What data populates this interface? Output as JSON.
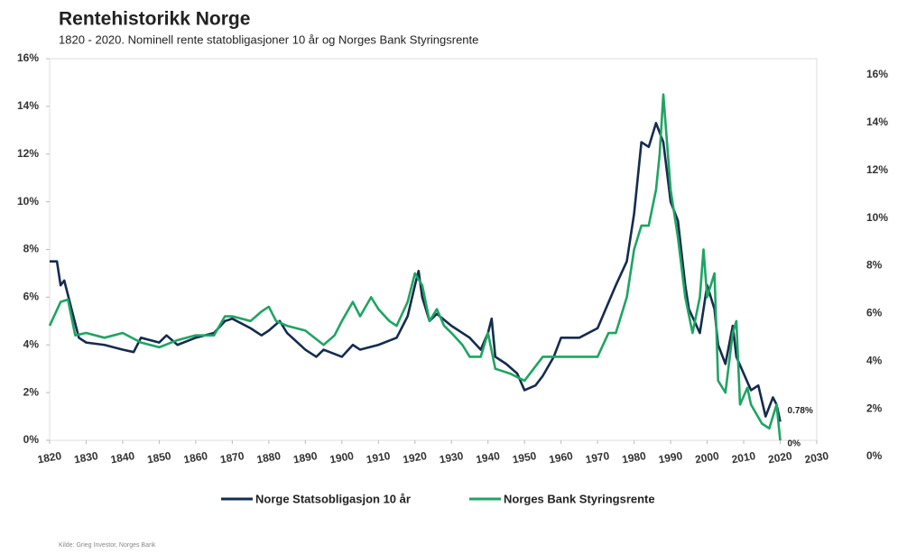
{
  "chart_data": {
    "type": "line",
    "title": "Rentehistorikk Norge",
    "subtitle": "1820 - 2020. Nominell rente statobligasjoner 10 år og Norges Bank Styringsrente",
    "source": "Kilde: Grieg Investor, Norges Bank",
    "xlim": [
      1820,
      2030
    ],
    "xticks": [
      1820,
      1830,
      1840,
      1850,
      1860,
      1870,
      1880,
      1890,
      1900,
      1910,
      1920,
      1930,
      1940,
      1950,
      1960,
      1970,
      1980,
      1990,
      2000,
      2010,
      2020,
      2030
    ],
    "ylim": [
      0,
      16
    ],
    "yticks": [
      {
        "value": 0,
        "label": "0%"
      },
      {
        "value": 2,
        "label": "2%"
      },
      {
        "value": 4,
        "label": "4%"
      },
      {
        "value": 6,
        "label": "6%"
      },
      {
        "value": 8,
        "label": "8%"
      },
      {
        "value": 10,
        "label": "10%"
      },
      {
        "value": 12,
        "label": "12%"
      },
      {
        "value": 14,
        "label": "14%"
      },
      {
        "value": 16,
        "label": "16%"
      }
    ],
    "y2lim": [
      0,
      16
    ],
    "y2ticks": [
      {
        "value": 0,
        "label": "0%"
      },
      {
        "value": 2,
        "label": "2%"
      },
      {
        "value": 4,
        "label": "4%"
      },
      {
        "value": 6,
        "label": "6%"
      },
      {
        "value": 8,
        "label": "8%"
      },
      {
        "value": 10,
        "label": "10%"
      },
      {
        "value": 12,
        "label": "12%"
      },
      {
        "value": 14,
        "label": "14%"
      },
      {
        "value": 16,
        "label": "16%"
      }
    ],
    "legend": "bottom",
    "series": [
      {
        "name": "Norge Statsobligasjon 10 år",
        "color": "#142c4e",
        "x": [
          1820,
          1822,
          1823,
          1824,
          1826,
          1828,
          1830,
          1835,
          1840,
          1843,
          1845,
          1850,
          1852,
          1855,
          1860,
          1865,
          1868,
          1870,
          1875,
          1878,
          1880,
          1883,
          1885,
          1890,
          1893,
          1895,
          1900,
          1903,
          1905,
          1910,
          1915,
          1918,
          1920,
          1921,
          1922,
          1924,
          1926,
          1930,
          1935,
          1938,
          1940,
          1941,
          1942,
          1945,
          1948,
          1950,
          1953,
          1955,
          1958,
          1960,
          1965,
          1970,
          1975,
          1978,
          1980,
          1982,
          1984,
          1986,
          1988,
          1990,
          1992,
          1994,
          1995,
          1998,
          2000,
          2002,
          2003,
          2005,
          2007,
          2008,
          2010,
          2012,
          2014,
          2016,
          2018,
          2019,
          2020
        ],
        "values": [
          7.5,
          7.5,
          6.5,
          6.7,
          5.5,
          4.3,
          4.1,
          4.0,
          3.8,
          3.7,
          4.3,
          4.1,
          4.4,
          4.0,
          4.3,
          4.5,
          5.0,
          5.1,
          4.7,
          4.4,
          4.6,
          5.0,
          4.5,
          3.8,
          3.5,
          3.8,
          3.5,
          4.0,
          3.8,
          4.0,
          4.3,
          5.2,
          6.5,
          7.1,
          6.0,
          5.0,
          5.3,
          4.8,
          4.3,
          3.8,
          4.5,
          5.1,
          3.5,
          3.2,
          2.8,
          2.1,
          2.3,
          2.7,
          3.5,
          4.3,
          4.3,
          4.7,
          6.5,
          7.5,
          9.5,
          12.5,
          12.3,
          13.3,
          12.5,
          10.0,
          9.2,
          6.5,
          5.5,
          4.5,
          6.5,
          5.5,
          4.0,
          3.2,
          4.8,
          3.5,
          2.8,
          2.1,
          2.3,
          1.0,
          1.8,
          1.5,
          0.78
        ],
        "end_label": "0.78%"
      },
      {
        "name": "Norges Bank Styringsrente",
        "color": "#1fa463",
        "x": [
          1820,
          1823,
          1825,
          1827,
          1830,
          1835,
          1840,
          1845,
          1850,
          1855,
          1860,
          1865,
          1868,
          1870,
          1875,
          1878,
          1880,
          1882,
          1885,
          1890,
          1895,
          1898,
          1900,
          1903,
          1905,
          1908,
          1910,
          1913,
          1915,
          1918,
          1920,
          1922,
          1924,
          1926,
          1928,
          1930,
          1933,
          1935,
          1938,
          1940,
          1942,
          1946,
          1950,
          1955,
          1960,
          1965,
          1970,
          1973,
          1975,
          1978,
          1980,
          1982,
          1984,
          1986,
          1987,
          1988,
          1989,
          1990,
          1992,
          1994,
          1996,
          1998,
          1999,
          2000,
          2002,
          2003,
          2005,
          2007,
          2008,
          2009,
          2011,
          2012,
          2015,
          2017,
          2019,
          2020
        ],
        "values": [
          4.8,
          5.8,
          5.9,
          4.4,
          4.5,
          4.3,
          4.5,
          4.1,
          3.9,
          4.2,
          4.4,
          4.4,
          5.2,
          5.2,
          5.0,
          5.4,
          5.6,
          5.0,
          4.8,
          4.6,
          4.0,
          4.4,
          5.0,
          5.8,
          5.2,
          6.0,
          5.5,
          5.0,
          4.8,
          5.8,
          7.0,
          6.5,
          5.0,
          5.5,
          4.8,
          4.5,
          4.0,
          3.5,
          3.5,
          4.5,
          3.0,
          2.8,
          2.5,
          3.5,
          3.5,
          3.5,
          3.5,
          4.5,
          4.5,
          6.0,
          8.0,
          9.0,
          9.0,
          10.5,
          12.0,
          14.5,
          12.5,
          10.5,
          8.5,
          6.0,
          4.5,
          6.0,
          8.0,
          6.0,
          7.0,
          2.5,
          2.0,
          4.5,
          5.0,
          1.5,
          2.2,
          1.5,
          0.7,
          0.5,
          1.5,
          0
        ],
        "end_label": "0%"
      }
    ]
  }
}
